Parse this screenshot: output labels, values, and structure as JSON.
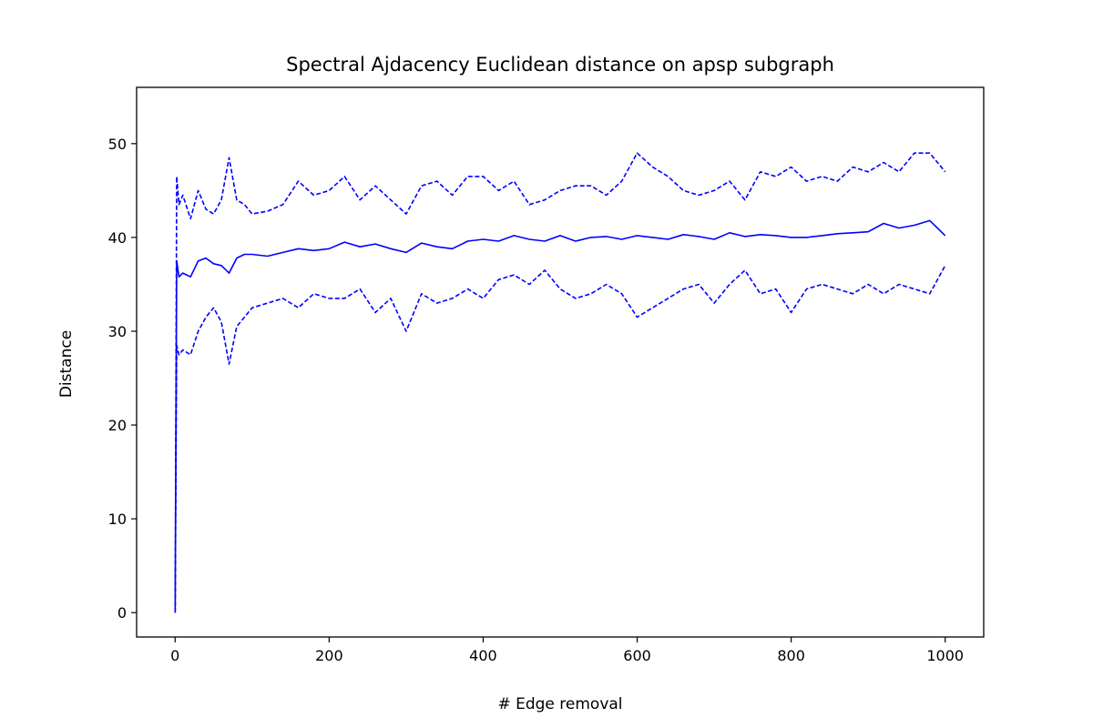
{
  "chart_data": {
    "type": "line",
    "title": "Spectral Ajdacency Euclidean distance on apsp subgraph",
    "xlabel": "# Edge removal",
    "ylabel": "Distance",
    "xlim": [
      -50,
      1050
    ],
    "ylim": [
      -2.6,
      56
    ],
    "xticks": [
      0,
      200,
      400,
      600,
      800,
      1000
    ],
    "yticks": [
      0,
      10,
      20,
      30,
      40,
      50
    ],
    "grid": false,
    "color": "#0000ff",
    "series": [
      {
        "style": "solid",
        "x": [
          0,
          2,
          5,
          10,
          20,
          30,
          40,
          50,
          60,
          70,
          80,
          90,
          100,
          120,
          140,
          160,
          180,
          200,
          220,
          240,
          260,
          280,
          300,
          320,
          340,
          360,
          380,
          400,
          420,
          440,
          460,
          480,
          500,
          520,
          540,
          560,
          580,
          600,
          620,
          640,
          660,
          680,
          700,
          720,
          740,
          760,
          780,
          800,
          820,
          840,
          860,
          880,
          900,
          920,
          940,
          960,
          980,
          1000
        ],
        "values": [
          0,
          37.5,
          35.8,
          36.2,
          35.8,
          37.5,
          37.8,
          37.2,
          37.0,
          36.2,
          37.8,
          38.2,
          38.2,
          38.0,
          38.4,
          38.8,
          38.6,
          38.8,
          39.5,
          39.0,
          39.3,
          38.8,
          38.4,
          39.4,
          39.0,
          38.8,
          39.6,
          39.8,
          39.6,
          40.2,
          39.8,
          39.6,
          40.2,
          39.6,
          40.0,
          40.1,
          39.8,
          40.2,
          40.0,
          39.8,
          40.3,
          40.1,
          39.8,
          40.5,
          40.1,
          40.3,
          40.2,
          40.0,
          40.0,
          40.2,
          40.4,
          40.5,
          40.6,
          41.5,
          41.0,
          41.3,
          41.8,
          40.2
        ]
      },
      {
        "style": "dashed",
        "x": [
          0,
          2,
          5,
          10,
          20,
          30,
          40,
          50,
          60,
          70,
          80,
          90,
          100,
          120,
          140,
          160,
          180,
          200,
          220,
          240,
          260,
          280,
          300,
          320,
          340,
          360,
          380,
          400,
          420,
          440,
          460,
          480,
          500,
          520,
          540,
          560,
          580,
          600,
          620,
          640,
          660,
          680,
          700,
          720,
          740,
          760,
          780,
          800,
          820,
          840,
          860,
          880,
          900,
          920,
          940,
          960,
          980,
          1000
        ],
        "values": [
          0,
          46.5,
          43.5,
          44.5,
          42.0,
          45.0,
          43.0,
          42.5,
          44.0,
          48.5,
          44.0,
          43.5,
          42.5,
          42.8,
          43.5,
          46.0,
          44.5,
          45.0,
          46.5,
          44.0,
          45.5,
          44.0,
          42.5,
          45.5,
          46.0,
          44.5,
          46.5,
          46.5,
          45.0,
          46.0,
          43.5,
          44.0,
          45.0,
          45.5,
          45.5,
          44.5,
          46.0,
          49.0,
          47.5,
          46.5,
          45.0,
          44.5,
          45.0,
          46.0,
          44.0,
          47.0,
          46.5,
          47.5,
          46.0,
          46.5,
          46.0,
          47.5,
          47.0,
          48.0,
          47.0,
          49.0,
          49.0,
          47.0
        ]
      },
      {
        "style": "dashed",
        "x": [
          0,
          2,
          5,
          10,
          20,
          30,
          40,
          50,
          60,
          70,
          80,
          90,
          100,
          120,
          140,
          160,
          180,
          200,
          220,
          240,
          260,
          280,
          300,
          320,
          340,
          360,
          380,
          400,
          420,
          440,
          460,
          480,
          500,
          520,
          540,
          560,
          580,
          600,
          620,
          640,
          660,
          680,
          700,
          720,
          740,
          760,
          780,
          800,
          820,
          840,
          860,
          880,
          900,
          920,
          940,
          960,
          980,
          1000
        ],
        "values": [
          0,
          28.5,
          27.5,
          28.0,
          27.5,
          30.0,
          31.5,
          32.5,
          31.0,
          26.5,
          30.5,
          31.5,
          32.5,
          33.0,
          33.5,
          32.5,
          34.0,
          33.5,
          33.5,
          34.5,
          32.0,
          33.5,
          30.0,
          34.0,
          33.0,
          33.5,
          34.5,
          33.5,
          35.5,
          36.0,
          35.0,
          36.5,
          34.5,
          33.5,
          34.0,
          35.0,
          34.0,
          31.5,
          32.5,
          33.5,
          34.5,
          35.0,
          33.0,
          35.0,
          36.5,
          34.0,
          34.5,
          32.0,
          34.5,
          35.0,
          34.5,
          34.0,
          35.0,
          34.0,
          35.0,
          34.5,
          34.0,
          37.0
        ]
      }
    ]
  }
}
